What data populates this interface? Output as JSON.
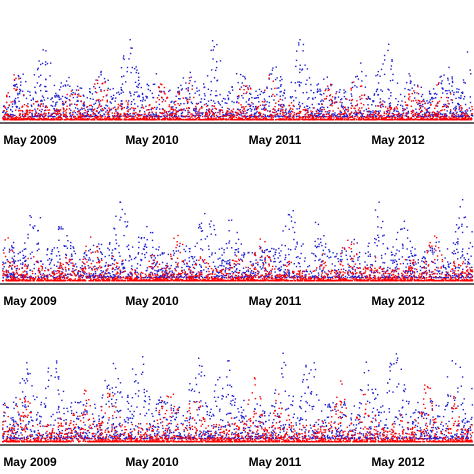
{
  "chart_data": [
    {
      "type": "scatter",
      "panel": "top",
      "x_ticks": [
        "May 2009",
        "May 2010",
        "May 2011",
        "May 2012"
      ],
      "x_range": [
        "2008-10",
        "2013-01"
      ],
      "series": [
        {
          "color": "#1f1fd0",
          "marker": "dot",
          "peak_level": 0.95
        },
        {
          "color": "#ff0000",
          "marker": "dot",
          "peak_level": 0.6
        }
      ],
      "grid": false
    },
    {
      "type": "scatter",
      "panel": "middle",
      "x_ticks": [
        "May 2009",
        "May 2010",
        "May 2011",
        "May 2012"
      ],
      "x_range": [
        "2008-10",
        "2013-01"
      ],
      "series": [
        {
          "color": "#1f1fd0",
          "marker": "dot",
          "peak_level": 0.95
        },
        {
          "color": "#ff0000",
          "marker": "dot",
          "peak_level": 0.55
        }
      ],
      "grid": false
    },
    {
      "type": "scatter",
      "panel": "bottom",
      "x_ticks": [
        "May 2009",
        "May 2010",
        "May 2011",
        "May 2012"
      ],
      "x_range": [
        "2008-10",
        "2013-01"
      ],
      "series": [
        {
          "color": "#1f1fd0",
          "marker": "dot",
          "peak_level": 0.95
        },
        {
          "color": "#ff0000",
          "marker": "dot",
          "peak_level": 0.65
        }
      ],
      "grid": false
    }
  ],
  "colors": {
    "blue": "#1f1fd0",
    "red": "#ff0000",
    "axis": "#000000"
  }
}
